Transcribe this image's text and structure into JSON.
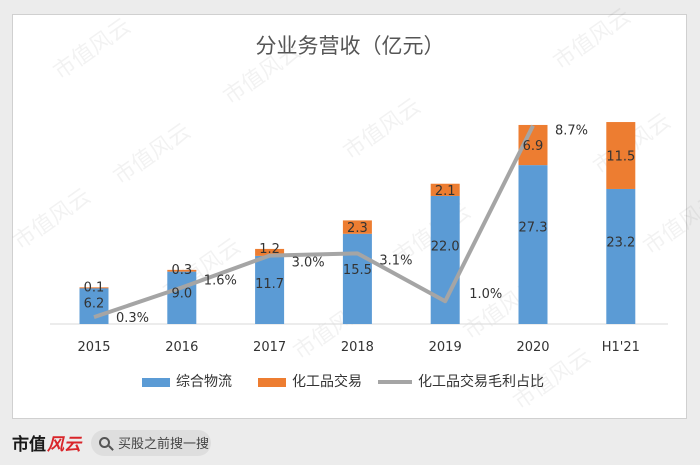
{
  "chart_data": {
    "type": "bar",
    "title": "分业务营收（亿元）",
    "categories": [
      "2015",
      "2016",
      "2017",
      "2018",
      "2019",
      "2020",
      "H1'21"
    ],
    "series": [
      {
        "name": "综合物流",
        "kind": "bar",
        "stacked": true,
        "color": "#5b9bd5",
        "values": [
          6.2,
          9.0,
          11.7,
          15.5,
          22.0,
          27.3,
          23.2
        ],
        "labels": [
          "6.2",
          "9.0",
          "11.7",
          "15.5",
          "22.0",
          "27.3",
          "23.2"
        ]
      },
      {
        "name": "化工品交易",
        "kind": "bar",
        "stacked": true,
        "color": "#ed7d31",
        "values": [
          0.1,
          0.3,
          1.2,
          2.3,
          2.1,
          6.9,
          11.5
        ],
        "labels": [
          "0.1",
          "0.3",
          "1.2",
          "2.3",
          "2.1",
          "6.9",
          "11.5"
        ]
      },
      {
        "name": "化工品交易毛利占比",
        "kind": "line",
        "color": "#a5a5a5",
        "values": [
          0.3,
          1.6,
          3.0,
          3.1,
          1.0,
          8.7,
          null
        ],
        "labels": [
          "0.3%",
          "1.6%",
          "3.0%",
          "3.1%",
          "1.0%",
          "8.7%",
          ""
        ]
      }
    ],
    "legend_position": "bottom",
    "grid": false
  },
  "watermark": "市值风云",
  "footer": {
    "brand_black": "市值",
    "brand_red": "风云",
    "search_placeholder": "买股之前搜一搜"
  }
}
